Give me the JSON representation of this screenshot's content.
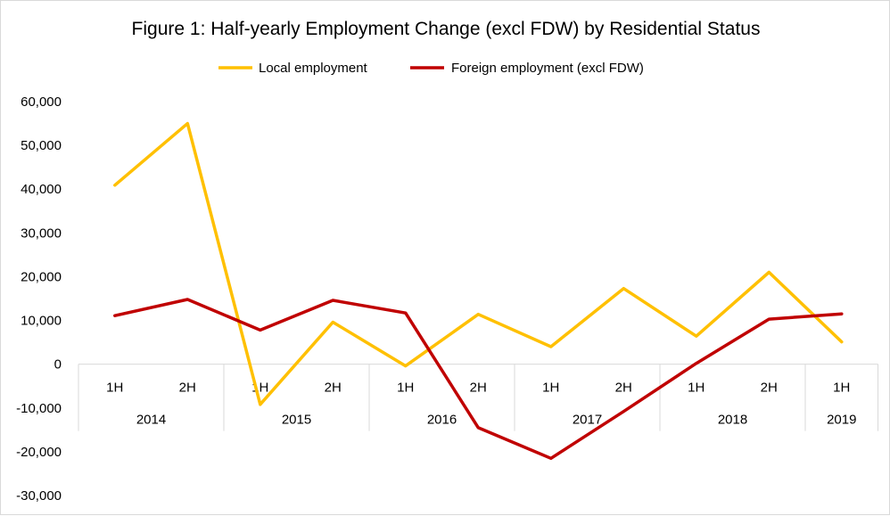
{
  "chart_data": {
    "type": "line",
    "title": "Figure 1: Half-yearly Employment Change (excl FDW) by Residential Status",
    "x": [
      "1H",
      "2H",
      "1H",
      "2H",
      "1H",
      "2H",
      "1H",
      "2H",
      "1H",
      "2H",
      "1H"
    ],
    "year_groups": [
      {
        "label": "2014",
        "span": 2
      },
      {
        "label": "2015",
        "span": 2
      },
      {
        "label": "2016",
        "span": 2
      },
      {
        "label": "2017",
        "span": 2
      },
      {
        "label": "2018",
        "span": 2
      },
      {
        "label": "2019",
        "span": 1
      }
    ],
    "y_ticks": [
      "60,000",
      "50,000",
      "40,000",
      "30,000",
      "20,000",
      "10,000",
      "0",
      "-10,000",
      "-20,000",
      "-30,000"
    ],
    "ylim": [
      -30000,
      60000
    ],
    "grid": false,
    "legend_position": "top",
    "series": [
      {
        "name": "Local employment",
        "color": "#FFC000",
        "values": [
          40900,
          55000,
          -9200,
          9600,
          -400,
          11400,
          4000,
          17300,
          6400,
          21000,
          5100
        ]
      },
      {
        "name": "Foreign employment (excl FDW)",
        "color": "#C00000",
        "values": [
          11100,
          14800,
          7800,
          14600,
          11700,
          -14500,
          -21500,
          -10800,
          200,
          10300,
          11500
        ]
      }
    ]
  }
}
